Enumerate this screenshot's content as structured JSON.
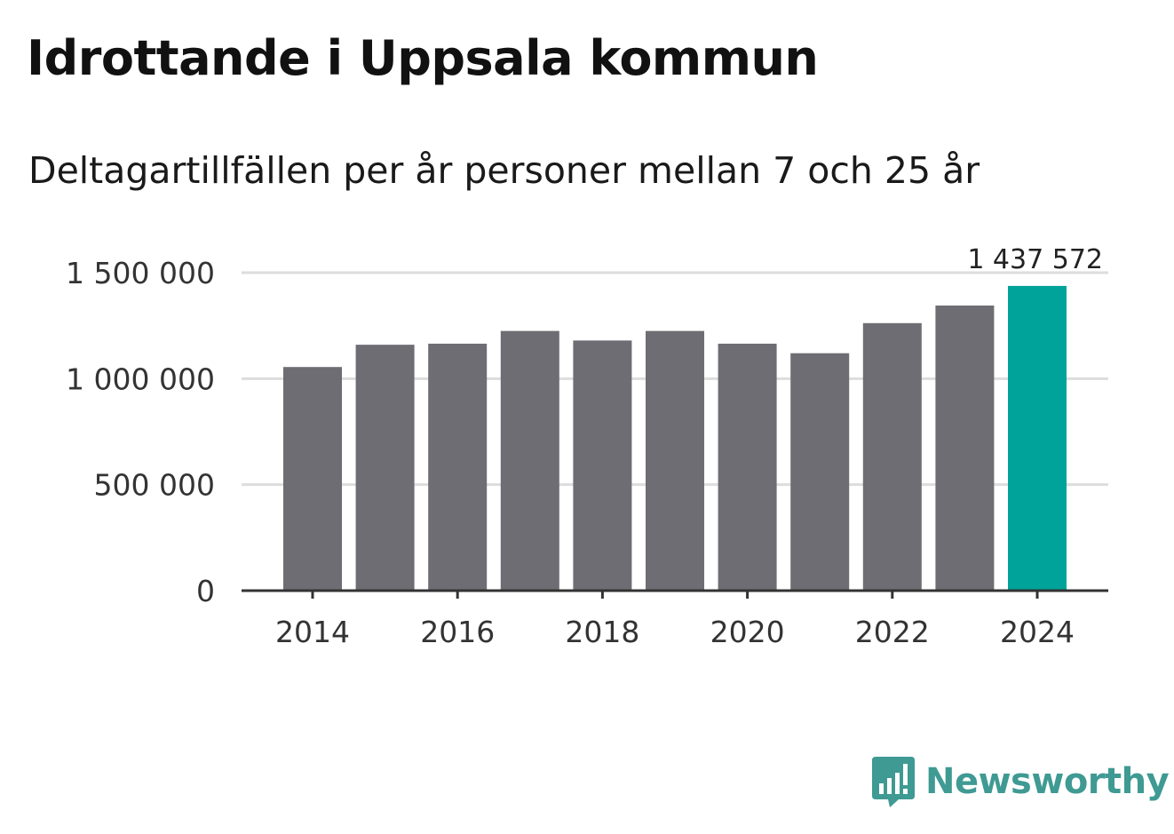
{
  "header": {
    "title": "Idrottande i Uppsala kommun",
    "subtitle": "Deltagartillfällen per år personer mellan 7 och 25 år"
  },
  "brand": {
    "name": "Newsworthy",
    "icon": "newsworthy-logo-icon",
    "color": "#3f9a93"
  },
  "colors": {
    "bar": "#6e6d73",
    "highlight": "#00a39a",
    "grid": "#dddddd",
    "axis": "#333333"
  },
  "chart_data": {
    "type": "bar",
    "title": "Idrottande i Uppsala kommun",
    "subtitle": "Deltagartillfällen per år personer mellan 7 och 25 år",
    "xlabel": "",
    "ylabel": "",
    "categories": [
      "2014",
      "2015",
      "2016",
      "2017",
      "2018",
      "2019",
      "2020",
      "2021",
      "2022",
      "2023",
      "2024"
    ],
    "values": [
      1055000,
      1160000,
      1165000,
      1225000,
      1180000,
      1225000,
      1165000,
      1120000,
      1262000,
      1345000,
      1437572
    ],
    "highlight_index": 10,
    "ylim": [
      0,
      1500000
    ],
    "yticks": [
      0,
      500000,
      1000000,
      1500000
    ],
    "ytick_labels": [
      "0",
      "500 000",
      "1 000 000",
      "1 500 000"
    ],
    "xtick_labels": [
      "2014",
      "2016",
      "2018",
      "2020",
      "2022",
      "2024"
    ],
    "xtick_years": [
      2014,
      2016,
      2018,
      2020,
      2022,
      2024
    ],
    "annotation": "1 437 572",
    "grid": true,
    "legend": "none"
  }
}
